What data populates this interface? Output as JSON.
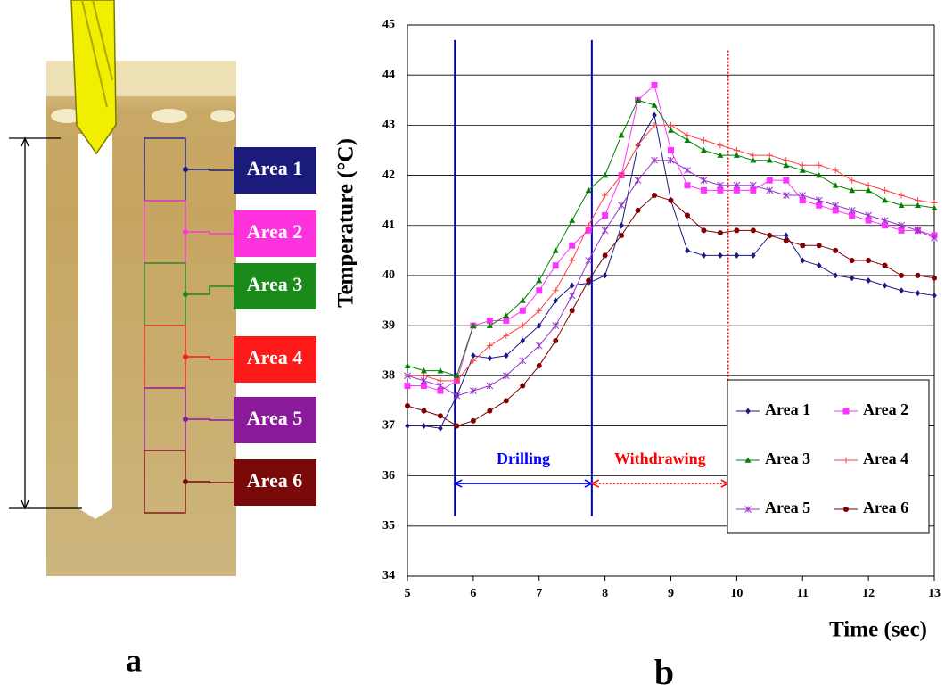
{
  "chart_data": {
    "type": "line",
    "x_label": "Time (sec)",
    "y_label": "Temperature (°C)",
    "x": [
      5,
      5.25,
      5.5,
      5.75,
      6,
      6.25,
      6.5,
      6.75,
      7,
      7.25,
      7.5,
      7.75,
      8,
      8.25,
      8.5,
      8.75,
      9,
      9.25,
      9.5,
      9.75,
      10,
      10.25,
      10.5,
      10.75,
      11,
      11.25,
      11.5,
      11.75,
      12,
      12.25,
      12.5,
      12.75,
      13
    ],
    "series": [
      {
        "name": "Area 1",
        "color": "#1a1a80",
        "marker": "diamond",
        "values": [
          37.0,
          37.0,
          36.95,
          37.6,
          38.4,
          38.35,
          38.4,
          38.7,
          39.0,
          39.5,
          39.8,
          39.85,
          40.0,
          41.0,
          42.6,
          43.2,
          41.5,
          40.5,
          40.4,
          40.4,
          40.4,
          40.4,
          40.8,
          40.8,
          40.3,
          40.2,
          40.0,
          39.95,
          39.9,
          39.8,
          39.7,
          39.65,
          39.6
        ]
      },
      {
        "name": "Area 2",
        "color": "#ff33ff",
        "marker": "square",
        "values": [
          37.8,
          37.8,
          37.7,
          37.9,
          39.0,
          39.1,
          39.1,
          39.3,
          39.7,
          40.2,
          40.6,
          40.9,
          41.2,
          42.0,
          43.5,
          43.8,
          42.5,
          41.8,
          41.7,
          41.7,
          41.7,
          41.7,
          41.9,
          41.9,
          41.5,
          41.4,
          41.3,
          41.2,
          41.1,
          41.0,
          40.9,
          40.9,
          40.8
        ]
      },
      {
        "name": "Area 3",
        "color": "#008000",
        "marker": "triangle",
        "values": [
          38.2,
          38.1,
          38.1,
          38.0,
          39.0,
          39.0,
          39.2,
          39.5,
          39.9,
          40.5,
          41.1,
          41.7,
          42.0,
          42.8,
          43.5,
          43.4,
          42.9,
          42.7,
          42.5,
          42.4,
          42.4,
          42.3,
          42.3,
          42.2,
          42.1,
          42.0,
          41.8,
          41.7,
          41.7,
          41.5,
          41.4,
          41.4,
          41.35
        ]
      },
      {
        "name": "Area 4",
        "color": "#ff4040",
        "marker": "plus",
        "values": [
          38.0,
          38.0,
          37.9,
          37.9,
          38.3,
          38.6,
          38.8,
          39.0,
          39.3,
          39.7,
          40.3,
          41.0,
          41.6,
          42.0,
          42.6,
          43.0,
          43.0,
          42.8,
          42.7,
          42.6,
          42.5,
          42.4,
          42.4,
          42.3,
          42.2,
          42.2,
          42.1,
          41.9,
          41.8,
          41.7,
          41.6,
          41.5,
          41.45
        ]
      },
      {
        "name": "Area 5",
        "color": "#9933cc",
        "marker": "star",
        "values": [
          38.0,
          37.9,
          37.8,
          37.6,
          37.7,
          37.8,
          38.0,
          38.3,
          38.6,
          39.0,
          39.6,
          40.3,
          40.9,
          41.4,
          41.9,
          42.3,
          42.3,
          42.1,
          41.9,
          41.8,
          41.8,
          41.8,
          41.7,
          41.6,
          41.6,
          41.5,
          41.4,
          41.3,
          41.2,
          41.1,
          41.0,
          40.9,
          40.75
        ]
      },
      {
        "name": "Area 6",
        "color": "#800000",
        "marker": "circle",
        "values": [
          37.4,
          37.3,
          37.2,
          37.0,
          37.1,
          37.3,
          37.5,
          37.8,
          38.2,
          38.7,
          39.3,
          39.9,
          40.4,
          40.8,
          41.3,
          41.6,
          41.5,
          41.2,
          40.9,
          40.85,
          40.9,
          40.9,
          40.8,
          40.7,
          40.6,
          40.6,
          40.5,
          40.3,
          40.3,
          40.2,
          40.0,
          40.0,
          39.95
        ]
      }
    ],
    "xlim": [
      5,
      13
    ],
    "xticks": [
      5,
      6,
      7,
      8,
      9,
      10,
      11,
      12,
      13
    ],
    "ylim": [
      34,
      45
    ],
    "yticks": [
      34,
      35,
      36,
      37,
      38,
      39,
      40,
      41,
      42,
      43,
      44,
      45
    ],
    "grid": true,
    "legend": "lower right",
    "vlines": [
      {
        "x": 5.72,
        "y": [
          35.2,
          44.7
        ],
        "color": "#0000c0",
        "style": "solid"
      },
      {
        "x": 7.8,
        "y": [
          35.2,
          44.7
        ],
        "color": "#0000c0",
        "style": "solid"
      },
      {
        "x": 9.87,
        "y": [
          35.2,
          44.5
        ],
        "color": "#ff0000",
        "style": "dotted"
      }
    ],
    "annotations": [
      {
        "text": "Drilling",
        "x": [
          5.72,
          7.8
        ],
        "y": 35.85,
        "color": "#0000ff",
        "style": "solid"
      },
      {
        "text": "Withdrawing",
        "x": [
          7.8,
          9.87
        ],
        "y": 35.85,
        "color": "#ff0000",
        "style": "dotted"
      }
    ]
  },
  "illustration": {
    "areas": [
      {
        "label": "Area 1",
        "color": "#1b1b7c"
      },
      {
        "label": "Area 2",
        "color": "#ff33dd"
      },
      {
        "label": "Area 3",
        "color": "#1a8a1a"
      },
      {
        "label": "Area 4",
        "color": "#ff1a1a"
      },
      {
        "label": "Area 5",
        "color": "#8a1a9a"
      },
      {
        "label": "Area 6",
        "color": "#7a0a0a"
      }
    ]
  },
  "panel_labels": [
    "a",
    "b"
  ]
}
